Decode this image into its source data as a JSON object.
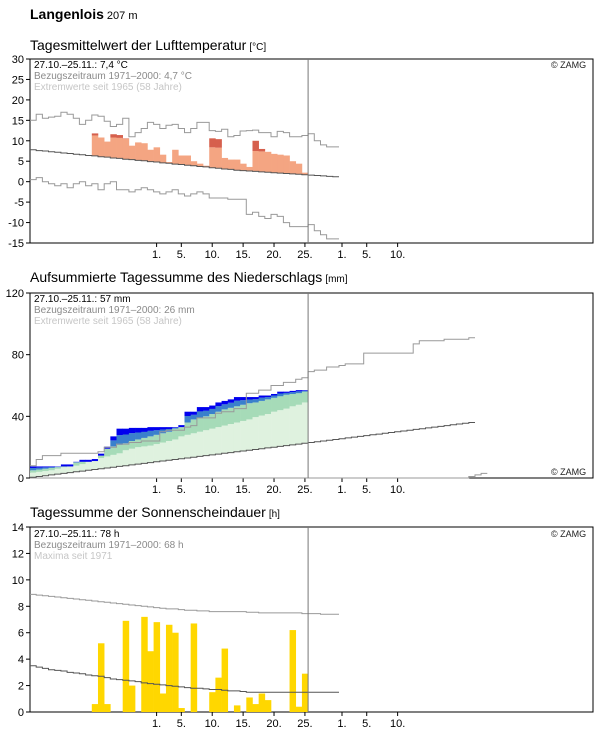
{
  "header": {
    "station": "Langenlois",
    "elevation": "207 m"
  },
  "source_label": "© ZAMG",
  "x_axis": {
    "start_date": "2022-10-12",
    "days": 45,
    "cutoff_after_day": 44,
    "tick_labels": [
      {
        "date": "2022-11-01",
        "label": "1."
      },
      {
        "date": "2022-11-05",
        "label": "5."
      },
      {
        "date": "2022-11-10",
        "label": "10."
      },
      {
        "date": "2022-11-15",
        "label": "15."
      },
      {
        "date": "2022-11-20",
        "label": "20."
      },
      {
        "date": "2022-11-25",
        "label": "25."
      },
      {
        "date": "2022-12-01",
        "label": "1."
      },
      {
        "date": "2022-12-05",
        "label": "5."
      },
      {
        "date": "2022-12-10",
        "label": "10."
      }
    ]
  },
  "chart_data": [
    {
      "id": "temperature",
      "type": "bar",
      "title": "Tagesmittelwert der Lufttemperatur",
      "unit": "[°C]",
      "ylim": [
        -15,
        30
      ],
      "yticks": [
        -15,
        -10,
        -5,
        0,
        5,
        10,
        15,
        20,
        25,
        30
      ],
      "info": [
        "27.10.–25.11.: 7,4 °C",
        "Bezugszeitraum 1971–2000: 4,7 °C",
        "Extremwerte seit 1965 (58 Jahre)"
      ],
      "colors": {
        "above": "#f4a582",
        "strong": "#d6604d",
        "below": "#92c5de",
        "normal_line": "#555555",
        "extreme_line": "#999999"
      },
      "series": [
        {
          "values": [
            11.8,
            10.8,
            9.8,
            11.6,
            11.4,
            10.6,
            8.8,
            9.6,
            9.4,
            7.8,
            8.4,
            6.6,
            4.8,
            7.8,
            6.4,
            6.4,
            5.0,
            4.4,
            3.9,
            10.6,
            10.4,
            5.8,
            5.4,
            5.4,
            4.4,
            3.6,
            10.0,
            8.0,
            7.3,
            6.8,
            6.6,
            6.4,
            5.0,
            4.4,
            2.2
          ]
        },
        {
          "name": "normal",
          "values": [
            7.8,
            7.6,
            7.5,
            7.3,
            7.2,
            7.0,
            6.9,
            6.7,
            6.6,
            6.4,
            6.3,
            6.1,
            6.0,
            5.8,
            5.7,
            5.5,
            5.4,
            5.2,
            5.1,
            4.9,
            4.8,
            4.6,
            4.5,
            4.3,
            4.2,
            4.0,
            3.9,
            3.7,
            3.6,
            3.4,
            3.3,
            3.1,
            3.0,
            2.8,
            2.7,
            2.6,
            2.5,
            2.4,
            2.3,
            2.2,
            2.1,
            2.0,
            1.9,
            1.8,
            1.7,
            1.6,
            1.5,
            1.4,
            1.3,
            1.2
          ]
        },
        {
          "name": "max",
          "values": [
            15,
            16.5,
            15.5,
            15.8,
            16.0,
            17.0,
            16.5,
            15.5,
            14.0,
            15.0,
            16.3,
            16.0,
            14.8,
            13.5,
            14.0,
            15.5,
            11.0,
            12.0,
            13.0,
            14.5,
            14.0,
            13.0,
            13.8,
            14.0,
            13.0,
            12.0,
            13.0,
            14.5,
            14.5,
            12.5,
            12.3,
            12.8,
            11.0,
            11.3,
            12.4,
            12.5,
            12.6,
            12.0,
            12.0,
            11.0,
            12.3,
            12.0,
            11.0,
            11.0,
            11.3,
            11.7,
            10.0,
            9.0,
            8.5,
            8.5
          ]
        },
        {
          "name": "min",
          "values": [
            0.5,
            1.0,
            0.0,
            -0.5,
            -1.0,
            -0.5,
            -1.5,
            -0.5,
            0.0,
            -1.0,
            -0.5,
            -2.0,
            -0.5,
            0.0,
            -2.0,
            -2.0,
            -2.5,
            -2.0,
            -1.5,
            -2.0,
            -2.5,
            -3.0,
            -2.5,
            -2.0,
            -3.0,
            -3.5,
            -3.0,
            -2.5,
            -3.0,
            -4.0,
            -4.0,
            -4.0,
            -4.3,
            -4.3,
            -4.3,
            -8.0,
            -7.5,
            -8.5,
            -9.0,
            -8.0,
            -8.5,
            -10.0,
            -11.0,
            -11.0,
            -11.0,
            -10.5,
            -12.0,
            -13.0,
            -14.0,
            -14.0
          ]
        }
      ]
    },
    {
      "id": "precipitation",
      "type": "area",
      "title": "Aufsummierte Tagessumme des Niederschlags",
      "unit": "[mm]",
      "ylim": [
        0,
        120
      ],
      "yticks": [
        0,
        40,
        80,
        120
      ],
      "info": [
        "27.10.–25.11.: 57 mm",
        "Bezugszeitraum 1971–2000: 26 mm",
        "Extremwerte seit 1965 (58 Jahre)"
      ],
      "colors": {
        "actual": "#0000ee",
        "excess_mid": "#3a80cc",
        "band_mid": "#a6dbb8",
        "band_low": "#dff2df",
        "normal_line": "#555555",
        "extreme_line": "#999999"
      },
      "series": [
        {
          "values": [
            7.5,
            7.5,
            7.5,
            7.5,
            7.5,
            7.5,
            7.5,
            10.5,
            10.5,
            10.5,
            11.0,
            14.5,
            19.0,
            27.0,
            32.0,
            32.0,
            32.5,
            32.5,
            32.5,
            33.0,
            33.0,
            33.0,
            33.0,
            33.0,
            33.0,
            43.0,
            43.0,
            46.0,
            46.0,
            47.0,
            49.0,
            50.0,
            51.0,
            52.5,
            52.5,
            52.5,
            52.5,
            53.5,
            53.5,
            54.5,
            56.0,
            56.0,
            56.5,
            57.0,
            57.0
          ]
        },
        {
          "name": "normal",
          "values": [
            0.5,
            1.0,
            1.5,
            2.0,
            2.5,
            3.0,
            3.5,
            4.0,
            4.5,
            5.0,
            5.5,
            6.0,
            6.5,
            7.0,
            7.5,
            8.0,
            8.5,
            9.0,
            9.5,
            10.0,
            10.5,
            11.0,
            11.5,
            12.0,
            12.5,
            13.0,
            13.5,
            14.0,
            14.5,
            15.0,
            15.5,
            16.0,
            16.5,
            17.0,
            17.5,
            18.0,
            18.5,
            19.0,
            19.5,
            20.0,
            20.5,
            21.0,
            21.5,
            22.0,
            22.5,
            23.0,
            23.5,
            24.0,
            24.5,
            25.0,
            25.5,
            26.0,
            26.5,
            27.0,
            27.5,
            28.0,
            28.5,
            29.0,
            29.5,
            30.0,
            30.5,
            31.0,
            31.5,
            32.0,
            32.5,
            33.0,
            33.5,
            34.0,
            34.5,
            35.0,
            35.5,
            36.0
          ]
        },
        {
          "name": "band_low_top",
          "values": [
            3.5,
            4.0,
            4.5,
            5.0,
            6.0,
            7.0,
            7.5,
            8.0,
            9.0,
            10.5,
            12.0,
            13.0,
            14.0,
            15.0,
            16.0,
            18.0,
            19.0,
            20.0,
            20.5,
            21.0,
            22.0,
            23.0,
            24.0,
            25.0,
            27.0,
            28.0,
            29.0,
            30.0,
            31.0,
            32.0,
            33.0,
            34.0,
            35.0,
            36.0,
            37.0,
            38.0,
            39.5,
            40.5,
            41.5,
            43.0,
            44.0,
            45.0,
            46.5,
            47.5,
            49.0
          ]
        },
        {
          "name": "band_mid_top",
          "values": [
            5.0,
            5.5,
            6.0,
            6.5,
            7.0,
            8.0,
            9.0,
            10.0,
            11.5,
            13.0,
            15.0,
            17.0,
            19.0,
            20.5,
            21.5,
            22.5,
            24.0,
            25.0,
            26.0,
            27.0,
            28.0,
            29.0,
            30.0,
            32.0,
            34.0,
            36.0,
            38.0,
            39.0,
            40.0,
            41.5,
            43.0,
            44.5,
            45.5,
            46.5,
            47.5,
            48.5,
            49.0,
            50.0,
            51.0,
            52.0,
            53.0,
            54.0,
            54.5,
            55.0,
            56.0
          ]
        },
        {
          "name": "max",
          "values": [
            8.0,
            12.0,
            14.5,
            14.5,
            14.5,
            16.0,
            16.0,
            16.0,
            16.0,
            16.0,
            16.0,
            17.0,
            20.0,
            20.0,
            22.0,
            22.0,
            23.0,
            23.0,
            24.0,
            24.0,
            24.0,
            30.0,
            31.0,
            31.0,
            31.0,
            33.0,
            34.0,
            39.0,
            39.0,
            39.0,
            42.0,
            43.0,
            43.0,
            45.0,
            45.0,
            55.0,
            55.0,
            57.0,
            57.0,
            60.0,
            60.0,
            62.0,
            62.0,
            64.0,
            65.0,
            69.0,
            70.0,
            70.0,
            72.0,
            72.0,
            73.0,
            74.0,
            74.0,
            74.0,
            81.0,
            81.0,
            81.0,
            81.0,
            81.0,
            81.0,
            81.0,
            81.0,
            87.0,
            89.0,
            89.0,
            89.0,
            89.0,
            90.0,
            90.0,
            90.0,
            90.0,
            91.0
          ]
        },
        {
          "name": "min",
          "values": [
            0,
            0,
            0,
            0,
            0,
            0,
            0,
            0,
            0,
            0,
            0,
            0,
            0,
            0,
            0,
            0,
            0,
            0,
            0,
            0,
            0,
            0,
            0,
            0,
            0,
            0,
            0,
            0,
            0,
            0,
            0,
            0,
            0,
            0,
            0,
            0,
            0,
            0,
            0,
            0,
            0,
            0,
            0,
            0,
            0,
            0,
            0,
            0,
            0,
            0,
            0,
            0,
            0,
            0,
            0,
            0,
            0,
            0,
            0,
            0,
            0,
            0,
            0,
            0,
            0,
            0,
            0,
            0,
            0,
            0,
            0,
            1.0,
            2.0,
            3.0
          ]
        }
      ]
    },
    {
      "id": "sunshine",
      "type": "bar",
      "title": "Tagessumme der Sonnenscheindauer",
      "unit": "[h]",
      "ylim": [
        0,
        14
      ],
      "yticks": [
        0,
        2,
        4,
        6,
        8,
        10,
        12,
        14
      ],
      "info": [
        "27.10.–25.11.: 78 h",
        "Bezugszeitraum 1971–2000: 68 h",
        "Maxima seit 1971"
      ],
      "colors": {
        "bar": "#ffd700",
        "normal_line": "#555555",
        "extreme_line": "#999999"
      },
      "series": [
        {
          "values": [
            0.6,
            5.2,
            0.6,
            0,
            0,
            6.9,
            2.0,
            0,
            7.2,
            4.6,
            6.8,
            1.4,
            6.6,
            6.0,
            0.3,
            0,
            6.7,
            0,
            0,
            1.5,
            2.6,
            4.8,
            0,
            0.5,
            0,
            1.1,
            0.6,
            1.4,
            0.9,
            0,
            0,
            0,
            6.2,
            0.4,
            2.9
          ]
        },
        {
          "name": "normal",
          "values": [
            3.5,
            3.4,
            3.3,
            3.2,
            3.15,
            3.1,
            3.0,
            2.95,
            2.9,
            2.8,
            2.75,
            2.7,
            2.6,
            2.5,
            2.45,
            2.4,
            2.35,
            2.3,
            2.2,
            2.15,
            2.1,
            2.05,
            2.0,
            1.95,
            1.9,
            1.85,
            1.8,
            1.8,
            1.75,
            1.7,
            1.7,
            1.65,
            1.6,
            1.6,
            1.55,
            1.5,
            1.5,
            1.5,
            1.5,
            1.5,
            1.5,
            1.5,
            1.5,
            1.5,
            1.5,
            1.5,
            1.5,
            1.5,
            1.5,
            1.5
          ]
        },
        {
          "name": "max",
          "values": [
            8.9,
            8.85,
            8.8,
            8.75,
            8.7,
            8.65,
            8.6,
            8.55,
            8.5,
            8.45,
            8.4,
            8.35,
            8.3,
            8.25,
            8.2,
            8.15,
            8.1,
            8.05,
            8.0,
            7.95,
            7.9,
            7.85,
            7.8,
            7.8,
            7.75,
            7.7,
            7.7,
            7.65,
            7.65,
            7.6,
            7.6,
            7.6,
            7.6,
            7.6,
            7.6,
            7.55,
            7.55,
            7.5,
            7.5,
            7.5,
            7.5,
            7.5,
            7.5,
            7.5,
            7.45,
            7.45,
            7.45,
            7.4,
            7.4,
            7.4
          ]
        }
      ]
    }
  ]
}
